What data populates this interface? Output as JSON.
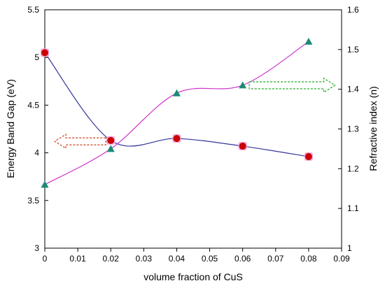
{
  "chart_data": {
    "type": "scatter",
    "x_axis": {
      "label": "volume fraction of CuS",
      "range": [
        0,
        0.09
      ],
      "ticks": [
        "0",
        "0.01",
        "0.02",
        "0.03",
        "0.04",
        "0.05",
        "0.06",
        "0.07",
        "0.08",
        "0.09"
      ]
    },
    "y_axis_left": {
      "label": "Energy Band Gap (eV)",
      "range": [
        3,
        5.5
      ],
      "ticks": [
        "3",
        "3.5",
        "4",
        "4.5",
        "5",
        "5.5"
      ]
    },
    "y_axis_right": {
      "label": "Refractive index (n)",
      "range": [
        1,
        1.6
      ],
      "ticks": [
        "1",
        "1.1",
        "1.2",
        "1.3",
        "1.4",
        "1.5",
        "1.6"
      ]
    },
    "series": [
      {
        "axis": "left",
        "marker": "circle",
        "color": "#cc0000",
        "line_color": "#333399",
        "x": [
          0,
          0.02,
          0.04,
          0.06,
          0.08
        ],
        "y": [
          5.05,
          4.13,
          4.15,
          4.07,
          3.96
        ]
      },
      {
        "axis": "right",
        "marker": "triangle",
        "color": "#1a8a73",
        "line_color": "#cc33cc",
        "x": [
          0,
          0.02,
          0.04,
          0.06,
          0.08
        ],
        "y": [
          1.16,
          1.25,
          1.39,
          1.41,
          1.52
        ]
      }
    ],
    "annotations": [
      {
        "type": "arrow",
        "direction": "left",
        "style": "dashed",
        "color": "#cc4422",
        "target": "left-axis"
      },
      {
        "type": "arrow",
        "direction": "right",
        "style": "dashed",
        "color": "#22aa22",
        "target": "right-axis"
      }
    ],
    "grid": false,
    "legend": "none"
  }
}
